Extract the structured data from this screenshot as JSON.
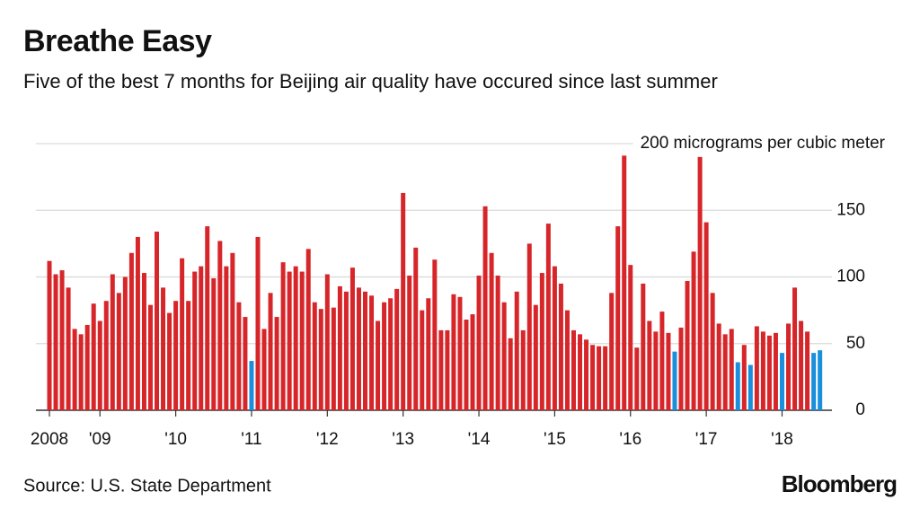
{
  "chart_data": {
    "type": "bar",
    "title": "Breathe Easy",
    "subtitle": "Five of the best 7 months for Beijing air quality have occured since last summer",
    "categories": [
      "2008",
      null,
      null,
      null,
      null,
      null,
      null,
      null,
      "'09",
      null,
      null,
      null,
      null,
      null,
      null,
      null,
      null,
      null,
      null,
      null,
      "'10",
      null,
      null,
      null,
      null,
      null,
      null,
      null,
      null,
      null,
      null,
      null,
      "'11",
      null,
      null,
      null,
      null,
      null,
      null,
      null,
      null,
      null,
      null,
      null,
      "'12",
      null,
      null,
      null,
      null,
      null,
      null,
      null,
      null,
      null,
      null,
      null,
      "'13",
      null,
      null,
      null,
      null,
      null,
      null,
      null,
      null,
      null,
      null,
      null,
      "'14",
      null,
      null,
      null,
      null,
      null,
      null,
      null,
      null,
      null,
      null,
      null,
      "'15",
      null,
      null,
      null,
      null,
      null,
      null,
      null,
      null,
      null,
      null,
      null,
      "'16",
      null,
      null,
      null,
      null,
      null,
      null,
      null,
      null,
      null,
      null,
      null,
      "'17",
      null,
      null,
      null,
      null,
      null,
      null,
      null,
      null,
      null,
      null,
      null,
      "'18",
      null,
      null,
      null,
      null,
      null,
      null
    ],
    "values": [
      112,
      102,
      105,
      92,
      61,
      57,
      64,
      80,
      67,
      82,
      102,
      88,
      100,
      118,
      130,
      103,
      79,
      134,
      92,
      73,
      82,
      114,
      82,
      104,
      108,
      138,
      99,
      127,
      108,
      118,
      81,
      70,
      37,
      130,
      61,
      88,
      70,
      111,
      104,
      108,
      104,
      121,
      81,
      76,
      102,
      77,
      93,
      89,
      107,
      92,
      89,
      86,
      67,
      81,
      84,
      91,
      163,
      101,
      122,
      75,
      84,
      113,
      60,
      60,
      87,
      85,
      68,
      72,
      101,
      153,
      118,
      101,
      81,
      54,
      89,
      60,
      125,
      79,
      103,
      140,
      108,
      95,
      75,
      60,
      57,
      53,
      49,
      48,
      48,
      88,
      138,
      191,
      109,
      47,
      95,
      67,
      59,
      74,
      58,
      44,
      62,
      97,
      119,
      190,
      141,
      88,
      65,
      57,
      61,
      36,
      49,
      34,
      63,
      59,
      56,
      58,
      43,
      65,
      92,
      67,
      59,
      43,
      45
    ],
    "colors": [
      "#d7262a",
      "#d7262a",
      "#d7262a",
      "#d7262a",
      "#d7262a",
      "#d7262a",
      "#d7262a",
      "#d7262a",
      "#d7262a",
      "#d7262a",
      "#d7262a",
      "#d7262a",
      "#d7262a",
      "#d7262a",
      "#d7262a",
      "#d7262a",
      "#d7262a",
      "#d7262a",
      "#d7262a",
      "#d7262a",
      "#d7262a",
      "#d7262a",
      "#d7262a",
      "#d7262a",
      "#d7262a",
      "#d7262a",
      "#d7262a",
      "#d7262a",
      "#d7262a",
      "#d7262a",
      "#d7262a",
      "#d7262a",
      "#1a8fdc",
      "#d7262a",
      "#d7262a",
      "#d7262a",
      "#d7262a",
      "#d7262a",
      "#d7262a",
      "#d7262a",
      "#d7262a",
      "#d7262a",
      "#d7262a",
      "#d7262a",
      "#d7262a",
      "#d7262a",
      "#d7262a",
      "#d7262a",
      "#d7262a",
      "#d7262a",
      "#d7262a",
      "#d7262a",
      "#d7262a",
      "#d7262a",
      "#d7262a",
      "#d7262a",
      "#d7262a",
      "#d7262a",
      "#d7262a",
      "#d7262a",
      "#d7262a",
      "#d7262a",
      "#d7262a",
      "#d7262a",
      "#d7262a",
      "#d7262a",
      "#d7262a",
      "#d7262a",
      "#d7262a",
      "#d7262a",
      "#d7262a",
      "#d7262a",
      "#d7262a",
      "#d7262a",
      "#d7262a",
      "#d7262a",
      "#d7262a",
      "#d7262a",
      "#d7262a",
      "#d7262a",
      "#d7262a",
      "#d7262a",
      "#d7262a",
      "#d7262a",
      "#d7262a",
      "#d7262a",
      "#d7262a",
      "#d7262a",
      "#d7262a",
      "#d7262a",
      "#d7262a",
      "#d7262a",
      "#d7262a",
      "#d7262a",
      "#d7262a",
      "#d7262a",
      "#d7262a",
      "#d7262a",
      "#d7262a",
      "#1a8fdc",
      "#d7262a",
      "#d7262a",
      "#d7262a",
      "#d7262a",
      "#d7262a",
      "#d7262a",
      "#d7262a",
      "#d7262a",
      "#d7262a",
      "#1a8fdc",
      "#d7262a",
      "#1a8fdc",
      "#d7262a",
      "#d7262a",
      "#d7262a",
      "#d7262a",
      "#1a8fdc",
      "#d7262a",
      "#d7262a",
      "#d7262a",
      "#d7262a",
      "#1a8fdc",
      "#1a8fdc"
    ],
    "ylim": [
      0,
      200
    ],
    "yticks": [
      0,
      50,
      100,
      150,
      {
        "value": 200,
        "label": "200 micrograms per cubic meter"
      }
    ],
    "grid": true
  },
  "footer": {
    "source": "Source: U.S. State Department",
    "logo": "Bloomberg"
  }
}
